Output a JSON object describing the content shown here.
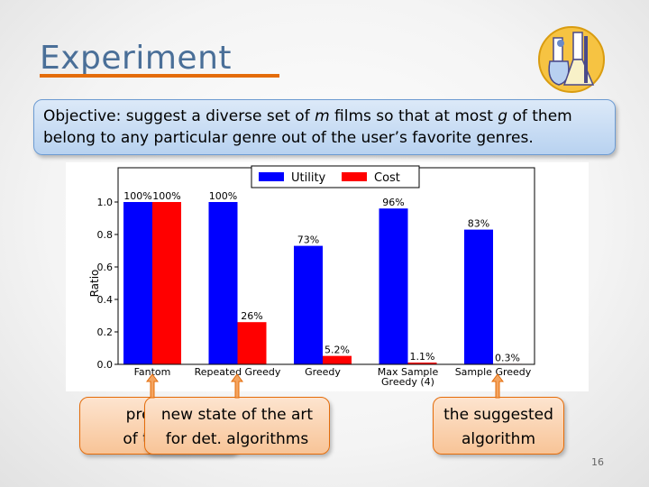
{
  "slide": {
    "title": "Experiment",
    "objective_parts": [
      "Objective: suggest a diverse set of ",
      "m",
      " films so that at most ",
      "g",
      " of them belong to any particular genre out of the user’s favorite genres."
    ],
    "page_number": "16"
  },
  "callouts": {
    "previous_line1": "previous",
    "previous_line2": "of the art",
    "det_line1": "new state of the art",
    "det_line2": "for det. algorithms",
    "suggested_line1": "the suggested",
    "suggested_line2": "algorithm"
  },
  "colors": {
    "utility": "#0000ff",
    "cost": "#ff0000",
    "callout_border": "#e46c0a",
    "callout_arrow": "#f4a460",
    "title": "#4a6f98"
  },
  "chart_data": {
    "type": "bar",
    "categories": [
      "Fantom",
      "Repeated Greedy",
      "Greedy",
      "Max Sample\nGreedy (4)",
      "Sample Greedy"
    ],
    "series": [
      {
        "name": "Utility",
        "values": [
          1.0,
          1.0,
          0.73,
          0.96,
          0.83
        ],
        "labels": [
          "100%",
          "100%",
          "73%",
          "96%",
          "83%"
        ]
      },
      {
        "name": "Cost",
        "values": [
          1.0,
          0.26,
          0.052,
          0.011,
          0.003
        ],
        "labels": [
          "100%",
          "26%",
          "5.2%",
          "1.1%",
          "0.3%"
        ]
      }
    ],
    "ylabel": "Ratio",
    "xlabel": "",
    "ylim": [
      0,
      1.0
    ],
    "yticks": [
      "0.0",
      "0.2",
      "0.4",
      "0.6",
      "0.8",
      "1.0"
    ],
    "legend_position": "top-center",
    "grid": false
  }
}
